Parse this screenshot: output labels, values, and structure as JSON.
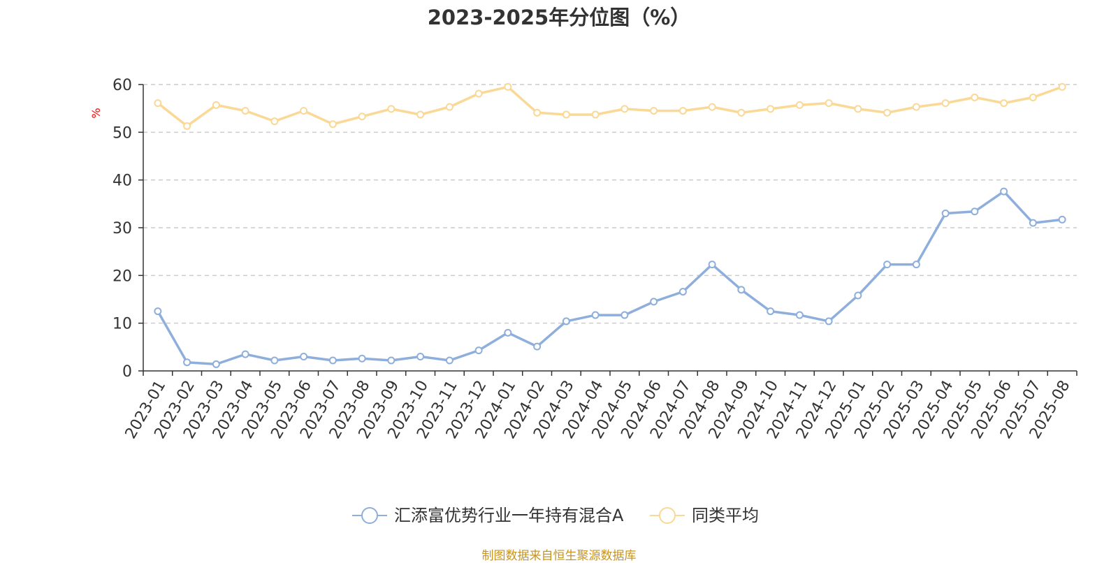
{
  "chart_data": {
    "type": "line",
    "title": "2023-2025年分位图（%）",
    "ylabel": "%",
    "xlabel": "",
    "ylim": [
      0,
      60
    ],
    "yticks": [
      0,
      10,
      20,
      30,
      40,
      50,
      60
    ],
    "grid": true,
    "legend_position": "bottom",
    "categories": [
      "2023-01",
      "2023-02",
      "2023-03",
      "2023-04",
      "2023-05",
      "2023-06",
      "2023-07",
      "2023-08",
      "2023-09",
      "2023-10",
      "2023-11",
      "2023-12",
      "2024-01",
      "2024-02",
      "2024-03",
      "2024-04",
      "2024-05",
      "2024-06",
      "2024-07",
      "2024-08",
      "2024-09",
      "2024-10",
      "2024-11",
      "2024-12",
      "2025-01",
      "2025-02",
      "2025-03",
      "2025-04",
      "2025-05",
      "2025-06",
      "2025-07",
      "2025-08"
    ],
    "series": [
      {
        "name": "汇添富优势行业一年持有混合A",
        "color": "#8eaedb",
        "values": [
          12.5,
          1.8,
          1.4,
          3.5,
          2.2,
          3.0,
          2.2,
          2.6,
          2.2,
          3.0,
          2.2,
          4.3,
          8.0,
          5.1,
          10.4,
          11.7,
          11.7,
          14.5,
          16.6,
          22.3,
          17.0,
          12.5,
          11.7,
          10.4,
          15.8,
          22.3,
          22.3,
          33.0,
          33.4,
          37.6,
          31.0,
          31.7
        ]
      },
      {
        "name": "同类平均",
        "color": "#fad896",
        "values": [
          56.1,
          51.3,
          55.7,
          54.5,
          52.3,
          54.5,
          51.7,
          53.3,
          54.9,
          53.7,
          55.3,
          58.1,
          59.5,
          54.1,
          53.7,
          53.7,
          54.9,
          54.5,
          54.5,
          55.3,
          54.1,
          54.9,
          55.7,
          56.1,
          54.9,
          54.1,
          55.3,
          56.1,
          57.3,
          56.1,
          57.3,
          59.5
        ]
      }
    ]
  },
  "source_note": "制图数据来自恒生聚源数据库",
  "colors": {
    "axis": "#333333",
    "grid": "#cccccc",
    "ylabel": "#ff0000",
    "source": "#c8941e"
  }
}
